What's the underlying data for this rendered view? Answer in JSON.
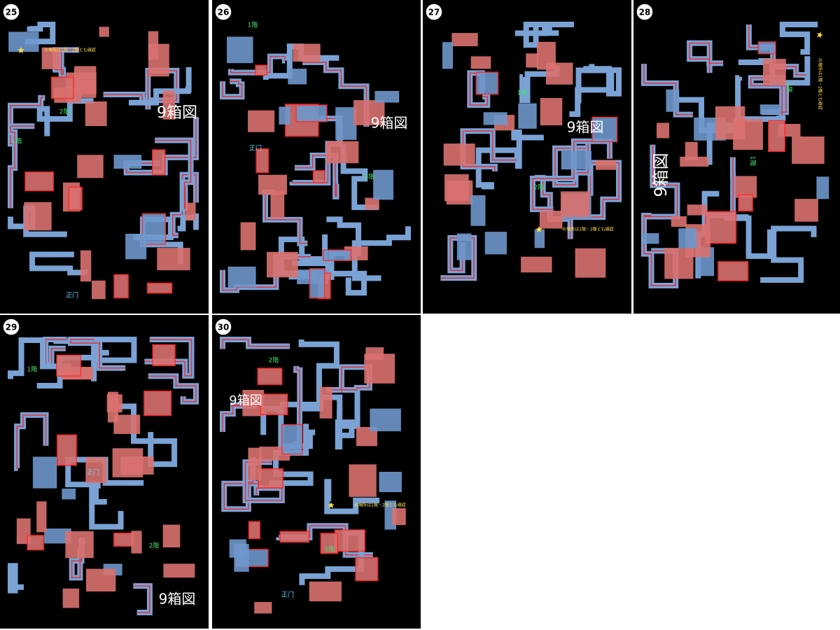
{
  "panels": [
    {
      "number": "25",
      "labels": [
        "の場所は1階・2階とも確認",
        "2階",
        "1階",
        "9箱図",
        "正门"
      ]
    },
    {
      "number": "26",
      "labels": [
        "1階",
        "9箱図",
        "2階",
        "正门"
      ]
    },
    {
      "number": "27",
      "labels": [
        "1階",
        "9箱図",
        "2階",
        "の場所は1階・2階とも確認"
      ]
    },
    {
      "number": "28",
      "labels": [
        "の場所は1階・2階とも確認",
        "2階",
        "1階",
        "9箱図"
      ]
    },
    {
      "number": "29",
      "labels": [
        "1階",
        "正门",
        "2階",
        "9箱図"
      ]
    },
    {
      "number": "30",
      "labels": [
        "2階",
        "9箱図",
        "の場所は1階・2階とも確認",
        "1階",
        "正门"
      ]
    }
  ]
}
